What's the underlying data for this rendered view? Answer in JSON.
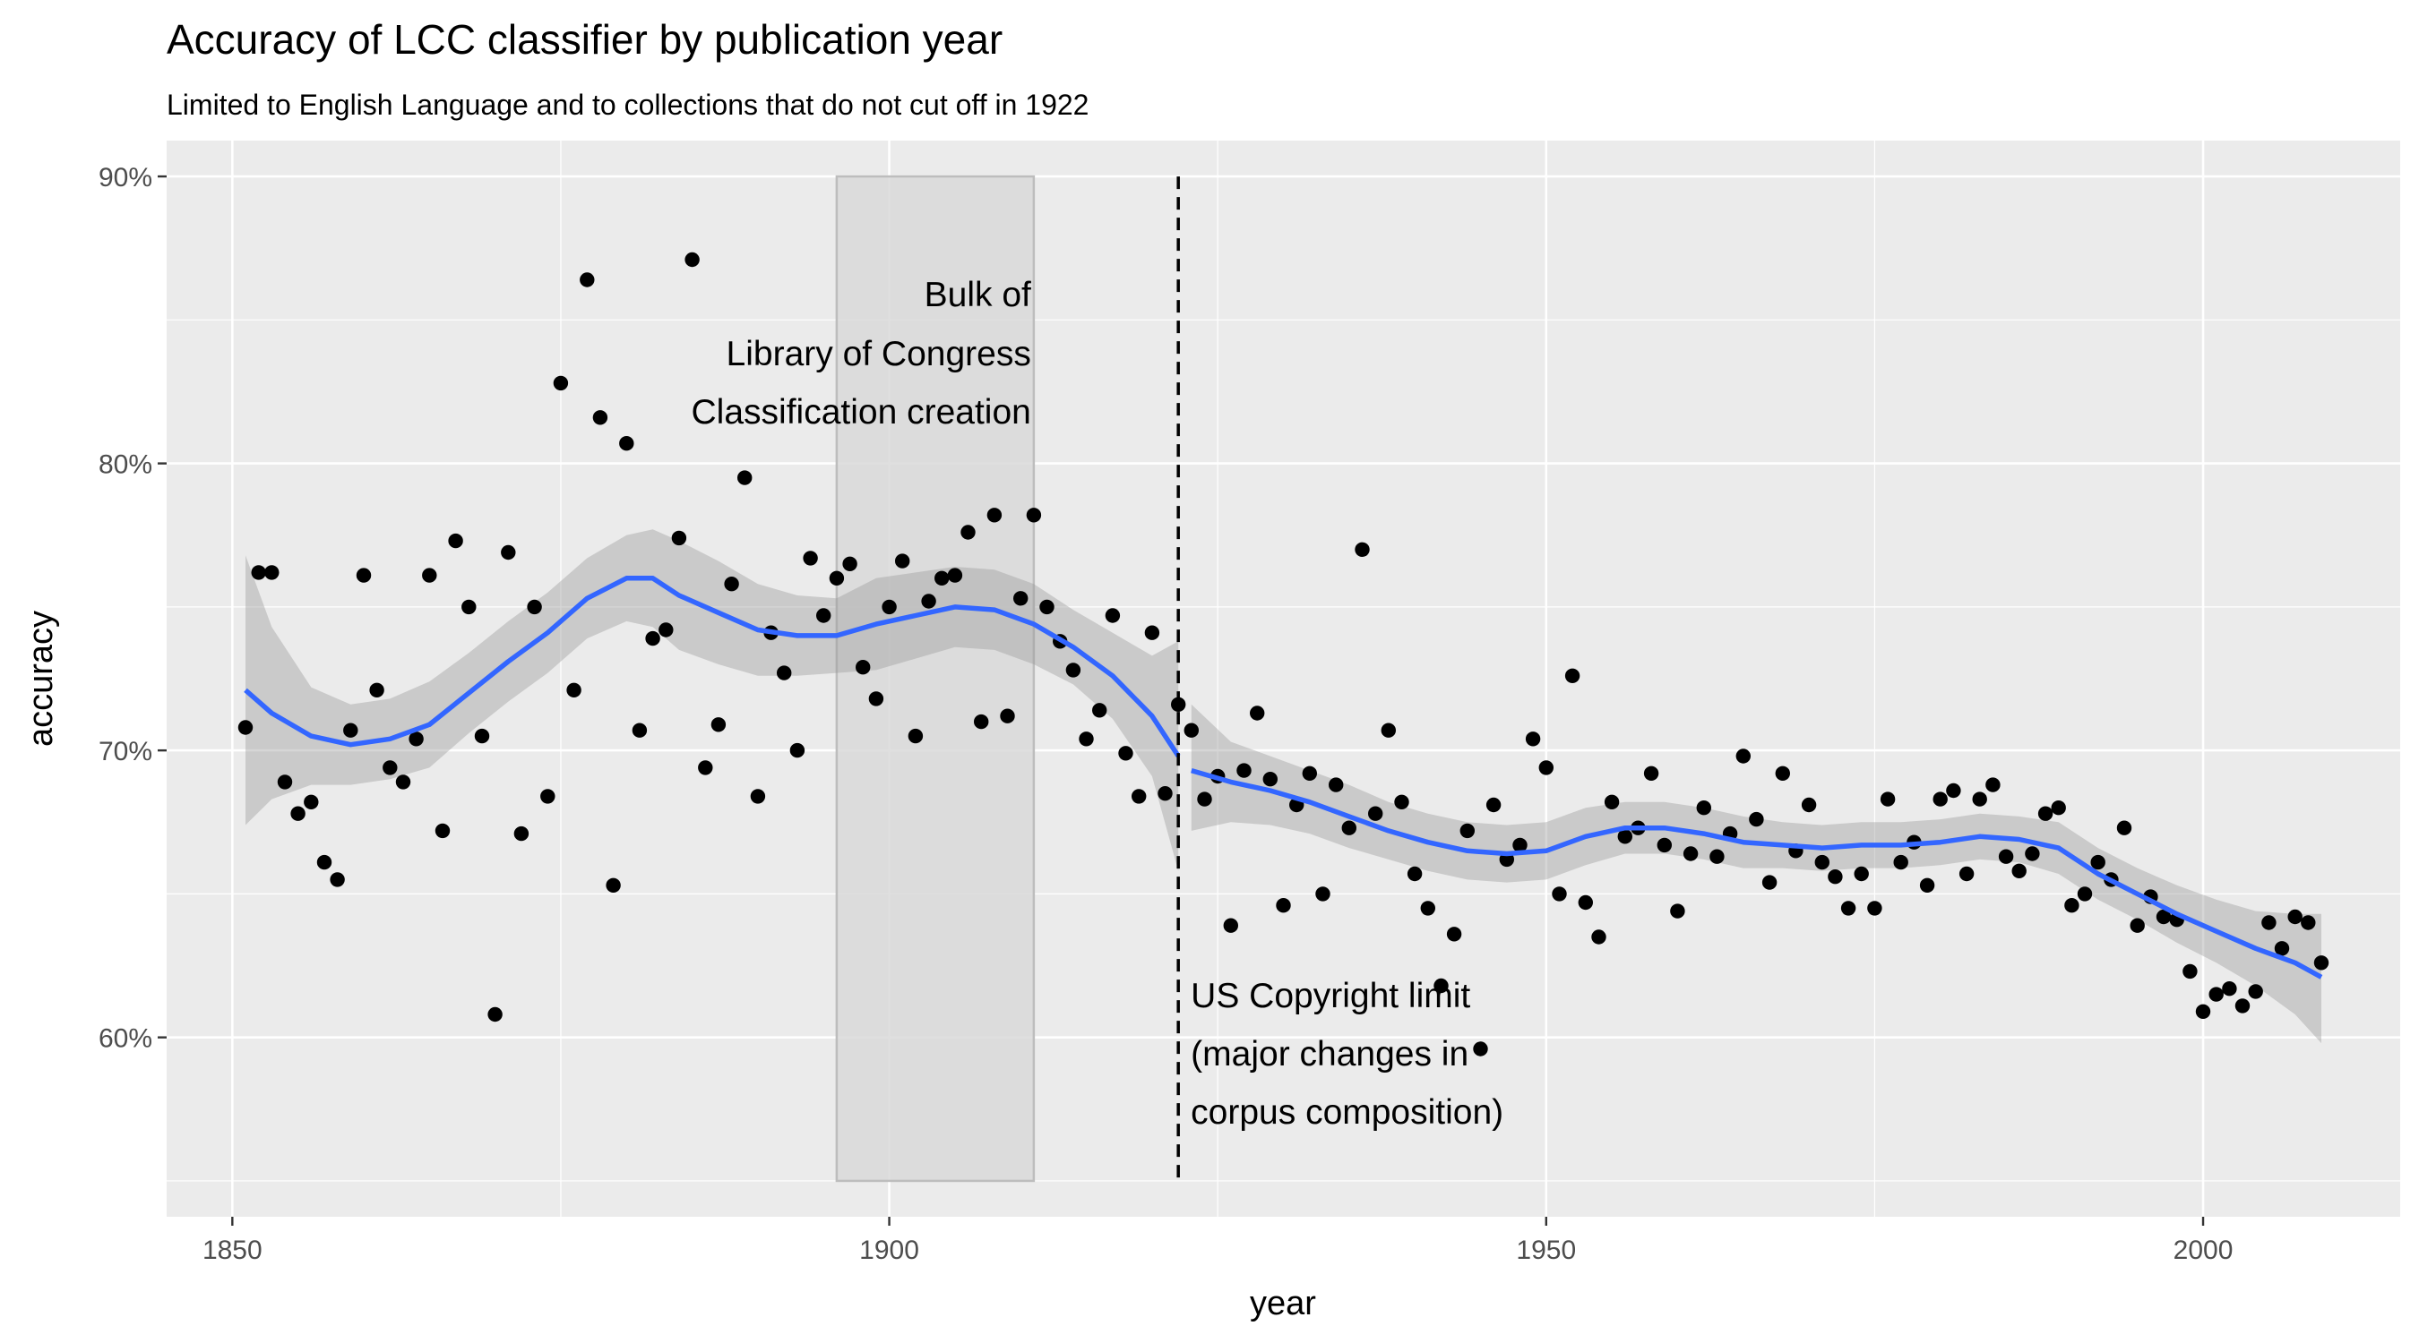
{
  "chart_data": {
    "type": "scatter",
    "title": "Accuracy of LCC classifier by publication year",
    "subtitle": "Limited to English Language and to collections that do not cut off in 1922",
    "xlabel": "year",
    "ylabel": "accuracy",
    "xlim": [
      1845,
      2015
    ],
    "ylim": [
      0.5375,
      0.9125
    ],
    "x_ticks": [
      1850,
      1900,
      1950,
      2000
    ],
    "x_tick_labels": [
      "1850",
      "1900",
      "1950",
      "2000"
    ],
    "y_ticks": [
      0.6,
      0.7,
      0.8,
      0.9
    ],
    "y_tick_labels": [
      "60%",
      "70%",
      "80%",
      "90%"
    ],
    "grid": true,
    "colors": {
      "panel": "#ebebeb",
      "grid": "#ffffff",
      "point": "#000000",
      "smooth_line": "#3366ff",
      "ribbon": "#999999",
      "shade_rect": "#d9d9d9"
    },
    "shaded_region": {
      "x": [
        1896,
        1911
      ],
      "y": [
        0.55,
        0.9
      ],
      "label_lines": [
        "Bulk of",
        "Library of Congress",
        "Classification creation"
      ]
    },
    "vline": {
      "x": 1922,
      "style": "dashed",
      "label_lines": [
        "US Copyright limit",
        "(major changes in",
        "corpus composition)"
      ]
    },
    "points": [
      [
        1851,
        0.708
      ],
      [
        1852,
        0.762
      ],
      [
        1853,
        0.762
      ],
      [
        1854,
        0.689
      ],
      [
        1855,
        0.678
      ],
      [
        1856,
        0.682
      ],
      [
        1857,
        0.661
      ],
      [
        1858,
        0.655
      ],
      [
        1859,
        0.707
      ],
      [
        1860,
        0.761
      ],
      [
        1861,
        0.721
      ],
      [
        1862,
        0.694
      ],
      [
        1863,
        0.689
      ],
      [
        1864,
        0.704
      ],
      [
        1865,
        0.761
      ],
      [
        1866,
        0.672
      ],
      [
        1867,
        0.773
      ],
      [
        1868,
        0.75
      ],
      [
        1869,
        0.705
      ],
      [
        1870,
        0.608
      ],
      [
        1871,
        0.769
      ],
      [
        1872,
        0.671
      ],
      [
        1873,
        0.75
      ],
      [
        1874,
        0.684
      ],
      [
        1875,
        0.828
      ],
      [
        1876,
        0.721
      ],
      [
        1877,
        0.864
      ],
      [
        1878,
        0.816
      ],
      [
        1879,
        0.653
      ],
      [
        1880,
        0.807
      ],
      [
        1881,
        0.707
      ],
      [
        1882,
        0.739
      ],
      [
        1883,
        0.742
      ],
      [
        1884,
        0.774
      ],
      [
        1885,
        0.871
      ],
      [
        1886,
        0.694
      ],
      [
        1887,
        0.709
      ],
      [
        1888,
        0.758
      ],
      [
        1889,
        0.795
      ],
      [
        1890,
        0.684
      ],
      [
        1891,
        0.741
      ],
      [
        1892,
        0.727
      ],
      [
        1893,
        0.7
      ],
      [
        1894,
        0.767
      ],
      [
        1895,
        0.747
      ],
      [
        1896,
        0.76
      ],
      [
        1897,
        0.765
      ],
      [
        1898,
        0.729
      ],
      [
        1899,
        0.718
      ],
      [
        1900,
        0.75
      ],
      [
        1901,
        0.766
      ],
      [
        1902,
        0.705
      ],
      [
        1903,
        0.752
      ],
      [
        1904,
        0.76
      ],
      [
        1905,
        0.761
      ],
      [
        1906,
        0.776
      ],
      [
        1907,
        0.71
      ],
      [
        1908,
        0.782
      ],
      [
        1909,
        0.712
      ],
      [
        1910,
        0.753
      ],
      [
        1911,
        0.782
      ],
      [
        1912,
        0.75
      ],
      [
        1913,
        0.738
      ],
      [
        1914,
        0.728
      ],
      [
        1915,
        0.704
      ],
      [
        1916,
        0.714
      ],
      [
        1917,
        0.747
      ],
      [
        1918,
        0.699
      ],
      [
        1919,
        0.684
      ],
      [
        1920,
        0.741
      ],
      [
        1921,
        0.685
      ],
      [
        1922,
        0.716
      ],
      [
        1923,
        0.707
      ],
      [
        1924,
        0.683
      ],
      [
        1925,
        0.691
      ],
      [
        1926,
        0.639
      ],
      [
        1927,
        0.693
      ],
      [
        1928,
        0.713
      ],
      [
        1929,
        0.69
      ],
      [
        1930,
        0.646
      ],
      [
        1931,
        0.681
      ],
      [
        1932,
        0.692
      ],
      [
        1933,
        0.65
      ],
      [
        1934,
        0.688
      ],
      [
        1935,
        0.673
      ],
      [
        1936,
        0.77
      ],
      [
        1937,
        0.678
      ],
      [
        1938,
        0.707
      ],
      [
        1939,
        0.682
      ],
      [
        1940,
        0.657
      ],
      [
        1941,
        0.645
      ],
      [
        1942,
        0.618
      ],
      [
        1943,
        0.636
      ],
      [
        1944,
        0.672
      ],
      [
        1945,
        0.596
      ],
      [
        1946,
        0.681
      ],
      [
        1947,
        0.662
      ],
      [
        1948,
        0.667
      ],
      [
        1949,
        0.704
      ],
      [
        1950,
        0.694
      ],
      [
        1951,
        0.65
      ],
      [
        1952,
        0.726
      ],
      [
        1953,
        0.647
      ],
      [
        1954,
        0.635
      ],
      [
        1955,
        0.682
      ],
      [
        1956,
        0.67
      ],
      [
        1957,
        0.673
      ],
      [
        1958,
        0.692
      ],
      [
        1959,
        0.667
      ],
      [
        1960,
        0.644
      ],
      [
        1961,
        0.664
      ],
      [
        1962,
        0.68
      ],
      [
        1963,
        0.663
      ],
      [
        1964,
        0.671
      ],
      [
        1965,
        0.698
      ],
      [
        1966,
        0.676
      ],
      [
        1967,
        0.654
      ],
      [
        1968,
        0.692
      ],
      [
        1969,
        0.665
      ],
      [
        1970,
        0.681
      ],
      [
        1971,
        0.661
      ],
      [
        1972,
        0.656
      ],
      [
        1973,
        0.645
      ],
      [
        1974,
        0.657
      ],
      [
        1975,
        0.645
      ],
      [
        1976,
        0.683
      ],
      [
        1977,
        0.661
      ],
      [
        1978,
        0.668
      ],
      [
        1979,
        0.653
      ],
      [
        1980,
        0.683
      ],
      [
        1981,
        0.686
      ],
      [
        1982,
        0.657
      ],
      [
        1983,
        0.683
      ],
      [
        1984,
        0.688
      ],
      [
        1985,
        0.663
      ],
      [
        1986,
        0.658
      ],
      [
        1987,
        0.664
      ],
      [
        1988,
        0.678
      ],
      [
        1989,
        0.68
      ],
      [
        1990,
        0.646
      ],
      [
        1991,
        0.65
      ],
      [
        1992,
        0.661
      ],
      [
        1993,
        0.655
      ],
      [
        1994,
        0.673
      ],
      [
        1995,
        0.639
      ],
      [
        1996,
        0.649
      ],
      [
        1997,
        0.642
      ],
      [
        1998,
        0.641
      ],
      [
        1999,
        0.623
      ],
      [
        2000,
        0.609
      ],
      [
        2001,
        0.615
      ],
      [
        2002,
        0.617
      ],
      [
        2003,
        0.611
      ],
      [
        2004,
        0.616
      ],
      [
        2005,
        0.64
      ],
      [
        2006,
        0.631
      ],
      [
        2007,
        0.642
      ],
      [
        2008,
        0.64
      ],
      [
        2009,
        0.626
      ]
    ],
    "smooth_segments": [
      {
        "x": [
          1851,
          1853,
          1856,
          1859,
          1862,
          1865,
          1868,
          1871,
          1874,
          1877,
          1880,
          1882,
          1884,
          1887,
          1890,
          1893,
          1896,
          1899,
          1902,
          1905,
          1908,
          1911,
          1914,
          1917,
          1920,
          1922
        ],
        "y": [
          0.721,
          0.713,
          0.705,
          0.702,
          0.704,
          0.709,
          0.72,
          0.731,
          0.741,
          0.753,
          0.76,
          0.76,
          0.754,
          0.748,
          0.742,
          0.74,
          0.74,
          0.744,
          0.747,
          0.75,
          0.749,
          0.744,
          0.736,
          0.726,
          0.712,
          0.698
        ],
        "lower": [
          0.674,
          0.683,
          0.688,
          0.688,
          0.69,
          0.694,
          0.706,
          0.717,
          0.727,
          0.739,
          0.745,
          0.743,
          0.735,
          0.73,
          0.726,
          0.726,
          0.727,
          0.728,
          0.732,
          0.736,
          0.735,
          0.73,
          0.723,
          0.711,
          0.691,
          0.658
        ]
      },
      {
        "x": [
          1923,
          1926,
          1929,
          1932,
          1935,
          1938,
          1941,
          1944,
          1947,
          1950,
          1953,
          1956,
          1959,
          1962,
          1965,
          1968,
          1971,
          1974,
          1977,
          1980,
          1983,
          1986,
          1989,
          1992,
          1995,
          1998,
          2001,
          2004,
          2007,
          2009
        ],
        "y": [
          0.693,
          0.689,
          0.686,
          0.682,
          0.677,
          0.672,
          0.668,
          0.665,
          0.664,
          0.665,
          0.67,
          0.673,
          0.673,
          0.671,
          0.668,
          0.667,
          0.666,
          0.667,
          0.667,
          0.668,
          0.67,
          0.669,
          0.666,
          0.657,
          0.65,
          0.643,
          0.637,
          0.631,
          0.626,
          0.621
        ],
        "lower": [
          0.672,
          0.675,
          0.674,
          0.671,
          0.666,
          0.662,
          0.658,
          0.655,
          0.654,
          0.655,
          0.66,
          0.664,
          0.664,
          0.662,
          0.659,
          0.659,
          0.658,
          0.659,
          0.659,
          0.66,
          0.662,
          0.661,
          0.657,
          0.648,
          0.641,
          0.633,
          0.626,
          0.618,
          0.608,
          0.598
        ],
        "upper": [
          0.716,
          0.703,
          0.698,
          0.693,
          0.688,
          0.682,
          0.678,
          0.675,
          0.674,
          0.675,
          0.68,
          0.682,
          0.682,
          0.68,
          0.677,
          0.675,
          0.674,
          0.675,
          0.675,
          0.676,
          0.678,
          0.677,
          0.675,
          0.666,
          0.659,
          0.653,
          0.648,
          0.644,
          0.643,
          0.643
        ]
      }
    ]
  }
}
